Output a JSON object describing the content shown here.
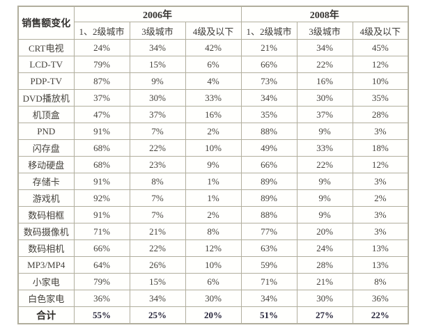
{
  "table": {
    "corner_label": "销售额变化",
    "year_groups": [
      "2006年",
      "2008年"
    ],
    "sub_headers": [
      "1、2级城市",
      "3级城市",
      "4级及以下",
      "1、2级城市",
      "3级城市",
      "4级及以下"
    ],
    "rows": [
      {
        "label": "CRT电视",
        "values": [
          "24%",
          "34%",
          "42%",
          "21%",
          "34%",
          "45%"
        ]
      },
      {
        "label": "LCD-TV",
        "values": [
          "79%",
          "15%",
          "6%",
          "66%",
          "22%",
          "12%"
        ]
      },
      {
        "label": "PDP-TV",
        "values": [
          "87%",
          "9%",
          "4%",
          "73%",
          "16%",
          "10%"
        ]
      },
      {
        "label": "DVD播放机",
        "values": [
          "37%",
          "30%",
          "33%",
          "34%",
          "30%",
          "35%"
        ]
      },
      {
        "label": "机顶盒",
        "values": [
          "47%",
          "37%",
          "16%",
          "35%",
          "37%",
          "28%"
        ]
      },
      {
        "label": "PND",
        "values": [
          "91%",
          "7%",
          "2%",
          "88%",
          "9%",
          "3%"
        ]
      },
      {
        "label": "闪存盘",
        "values": [
          "68%",
          "22%",
          "10%",
          "49%",
          "33%",
          "18%"
        ]
      },
      {
        "label": "移动硬盘",
        "values": [
          "68%",
          "23%",
          "9%",
          "66%",
          "22%",
          "12%"
        ]
      },
      {
        "label": "存储卡",
        "values": [
          "91%",
          "8%",
          "1%",
          "89%",
          "9%",
          "3%"
        ]
      },
      {
        "label": "游戏机",
        "values": [
          "92%",
          "7%",
          "1%",
          "89%",
          "9%",
          "2%"
        ]
      },
      {
        "label": "数码相框",
        "values": [
          "91%",
          "7%",
          "2%",
          "88%",
          "9%",
          "3%"
        ]
      },
      {
        "label": "数码摄像机",
        "values": [
          "71%",
          "21%",
          "8%",
          "77%",
          "20%",
          "3%"
        ]
      },
      {
        "label": "数码相机",
        "values": [
          "66%",
          "22%",
          "12%",
          "63%",
          "24%",
          "13%"
        ]
      },
      {
        "label": "MP3/MP4",
        "values": [
          "64%",
          "26%",
          "10%",
          "59%",
          "28%",
          "13%"
        ]
      },
      {
        "label": "小家电",
        "values": [
          "79%",
          "15%",
          "6%",
          "71%",
          "21%",
          "8%"
        ]
      },
      {
        "label": "白色家电",
        "values": [
          "36%",
          "34%",
          "30%",
          "34%",
          "30%",
          "36%"
        ]
      }
    ],
    "total_row": {
      "label": "合计",
      "values": [
        "55%",
        "25%",
        "20%",
        "51%",
        "27%",
        "22%"
      ]
    }
  },
  "chart_data": {
    "type": "table",
    "title": "销售额变化",
    "unit": "%",
    "column_groups": [
      "2006年",
      "2008年"
    ],
    "columns": [
      "销售额变化",
      "2006年 1、2级城市",
      "2006年 3级城市",
      "2006年 4级及以下",
      "2008年 1、2级城市",
      "2008年 3级城市",
      "2008年 4级及以下"
    ],
    "rows": [
      [
        "CRT电视",
        24,
        34,
        42,
        21,
        34,
        45
      ],
      [
        "LCD-TV",
        79,
        15,
        6,
        66,
        22,
        12
      ],
      [
        "PDP-TV",
        87,
        9,
        4,
        73,
        16,
        10
      ],
      [
        "DVD播放机",
        37,
        30,
        33,
        34,
        30,
        35
      ],
      [
        "机顶盒",
        47,
        37,
        16,
        35,
        37,
        28
      ],
      [
        "PND",
        91,
        7,
        2,
        88,
        9,
        3
      ],
      [
        "闪存盘",
        68,
        22,
        10,
        49,
        33,
        18
      ],
      [
        "移动硬盘",
        68,
        23,
        9,
        66,
        22,
        12
      ],
      [
        "存储卡",
        91,
        8,
        1,
        89,
        9,
        3
      ],
      [
        "游戏机",
        92,
        7,
        1,
        89,
        9,
        2
      ],
      [
        "数码相框",
        91,
        7,
        2,
        88,
        9,
        3
      ],
      [
        "数码摄像机",
        71,
        21,
        8,
        77,
        20,
        3
      ],
      [
        "数码相机",
        66,
        22,
        12,
        63,
        24,
        13
      ],
      [
        "MP3/MP4",
        64,
        26,
        10,
        59,
        28,
        13
      ],
      [
        "小家电",
        79,
        15,
        6,
        71,
        21,
        8
      ],
      [
        "白色家电",
        36,
        34,
        30,
        34,
        30,
        36
      ],
      [
        "合计",
        55,
        25,
        20,
        51,
        27,
        22
      ]
    ]
  }
}
